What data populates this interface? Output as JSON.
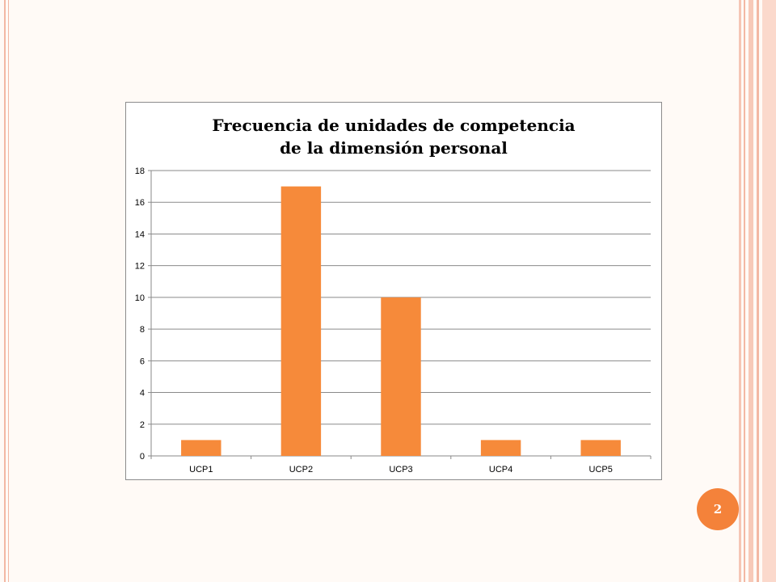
{
  "slide": {
    "page_number": "2"
  },
  "colors": {
    "bar": "#f68a3a",
    "badge": "#f4823a",
    "border_stripe": "#f3b8a4",
    "gridline": "#8a8a8a"
  },
  "chart_data": {
    "type": "bar",
    "title_lines": [
      "Frecuencia de unidades de competencia",
      "de la dimensión personal"
    ],
    "categories": [
      "UCP1",
      "UCP2",
      "UCP3",
      "UCP4",
      "UCP5"
    ],
    "values": [
      1,
      17,
      10,
      1,
      1
    ],
    "ylim": [
      0,
      18
    ],
    "yticks": [
      0,
      2,
      4,
      6,
      8,
      10,
      12,
      14,
      16,
      18
    ],
    "grid": true,
    "legend": "none"
  }
}
